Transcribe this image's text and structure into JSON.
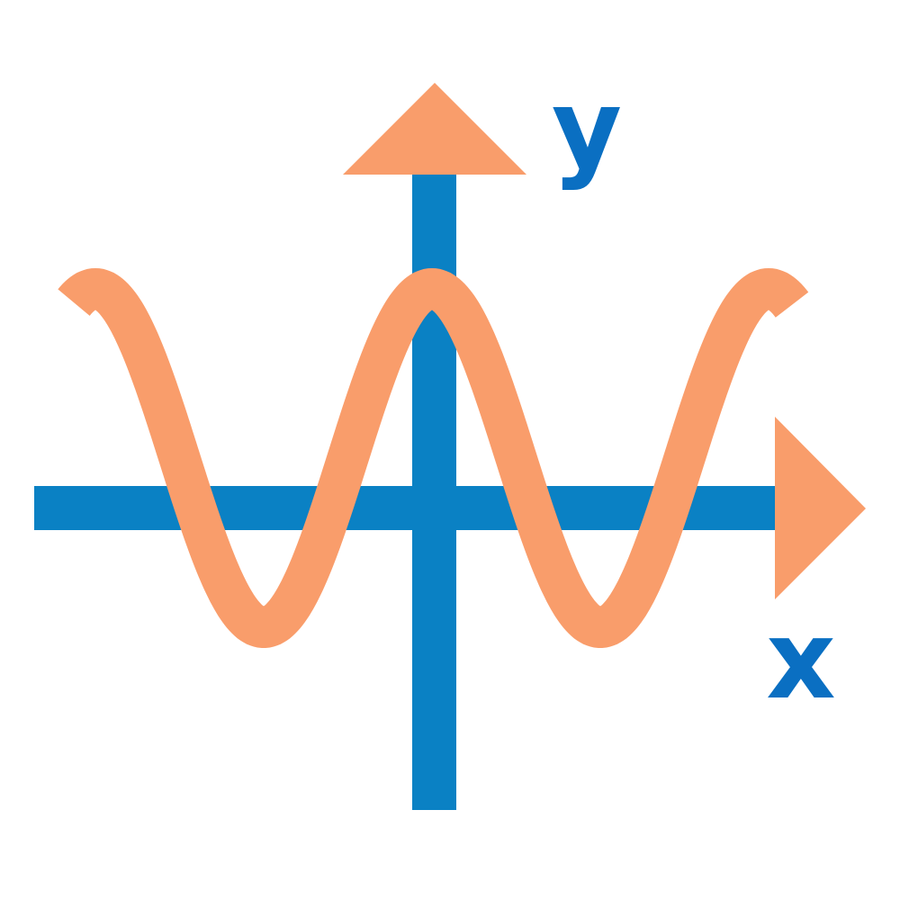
{
  "labels": {
    "y_axis": "y",
    "x_axis": "x"
  },
  "colors": {
    "axis": "#0a81c4",
    "curve": "#f99d6b",
    "arrow": "#f99d6b",
    "label": "#0a6fc2"
  },
  "icons": {
    "y_arrow": "arrow-up-icon",
    "x_arrow": "arrow-right-icon"
  },
  "curve": {
    "type": "cosine-wave",
    "visible_peaks": 3,
    "visible_troughs": 2
  }
}
